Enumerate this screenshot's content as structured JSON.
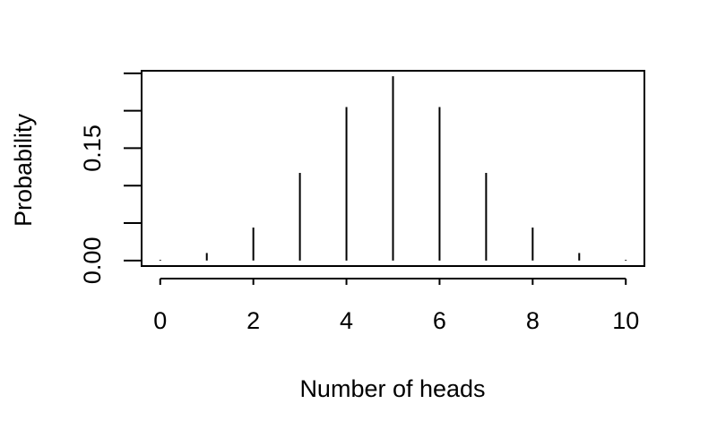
{
  "chart_data": {
    "type": "bar",
    "subtype": "probability-mass-spikes",
    "title": "",
    "xlabel": "Number of heads",
    "ylabel": "Probability",
    "x": [
      0,
      1,
      2,
      3,
      4,
      5,
      6,
      7,
      8,
      9,
      10
    ],
    "values": [
      0.001,
      0.01,
      0.044,
      0.117,
      0.205,
      0.246,
      0.205,
      0.117,
      0.044,
      0.01,
      0.001
    ],
    "xlim": [
      -0.4,
      10.4
    ],
    "ylim": [
      -0.0074,
      0.2534
    ],
    "xticks": [
      0,
      2,
      4,
      6,
      8,
      10
    ],
    "xtick_labels": [
      "0",
      "2",
      "4",
      "6",
      "8",
      "10"
    ],
    "yticks": [
      0.0,
      0.05,
      0.1,
      0.15,
      0.2,
      0.25
    ],
    "ytick_labels": [
      "0.00",
      "",
      "",
      "0.15",
      "",
      ""
    ],
    "grid": false,
    "legend": "none",
    "colors": {
      "line": "#000000",
      "background": "#ffffff"
    }
  }
}
